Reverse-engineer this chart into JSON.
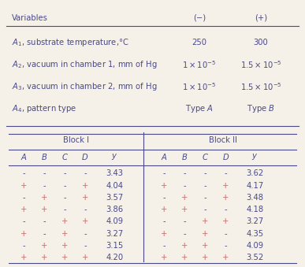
{
  "bg_color": "#f5f0e8",
  "text_color": "#4a4a8a",
  "plus_color": "#c87070",
  "header_vars": "Variables",
  "header_minus": "(−)",
  "header_plus": "(+)",
  "var_rows": [
    [
      "$A_1$, substrate temperature,°C",
      "250",
      "300"
    ],
    [
      "$A_2$, vacuum in chamber 1, mm of Hg",
      "$1 \\times 10^{-5}$",
      "$1.5 \\times 10^{-5}$"
    ],
    [
      "$A_3$, vacuum in chamber 2, mm of Hg",
      "$1 \\times 10^{-5}$",
      "$1.5 \\times 10^{-5}$"
    ],
    [
      "$A_4$, pattern type",
      "Type $A$",
      "Type $B$"
    ]
  ],
  "block1_header": "Block I",
  "block2_header": "Block II",
  "col_headers": [
    "$A$",
    "$B$",
    "$C$",
    "$D$",
    "$y$"
  ],
  "block1_data": [
    [
      "-",
      "-",
      "-",
      "-",
      "3.43"
    ],
    [
      "+",
      "-",
      "-",
      "+",
      "4.04"
    ],
    [
      "-",
      "+",
      "-",
      "+",
      "3.57"
    ],
    [
      "+",
      "+",
      "-",
      "-",
      "3.86"
    ],
    [
      "-",
      "-",
      "+",
      "+",
      "4.09"
    ],
    [
      "+",
      "-",
      "+",
      "-",
      "3.27"
    ],
    [
      "-",
      "+",
      "+",
      "-",
      "3.15"
    ],
    [
      "+",
      "+",
      "+",
      "+",
      "4.20"
    ]
  ],
  "block2_data": [
    [
      "-",
      "-",
      "-",
      "-",
      "3.62"
    ],
    [
      "+",
      "-",
      "-",
      "+",
      "4.17"
    ],
    [
      "-",
      "+",
      "-",
      "+",
      "3.48"
    ],
    [
      "+",
      "+",
      "-",
      "-",
      "4.18"
    ],
    [
      "-",
      "-",
      "+",
      "+",
      "3.27"
    ],
    [
      "+",
      "-",
      "+",
      "-",
      "4.35"
    ],
    [
      "-",
      "+",
      "+",
      "-",
      "4.09"
    ],
    [
      "+",
      "+",
      "+",
      "+",
      "3.52"
    ]
  ]
}
